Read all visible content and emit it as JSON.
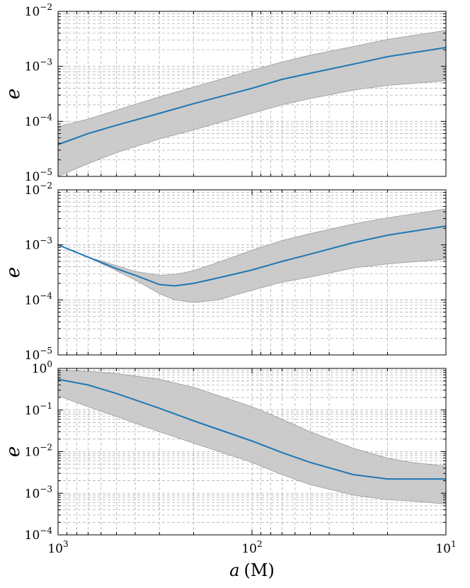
{
  "chart_data": [
    {
      "type": "line",
      "xscale": "log",
      "yscale": "log",
      "x_reversed": true,
      "xlim": [
        1000,
        10
      ],
      "ylim": [
        1e-05,
        0.01
      ],
      "grid": true,
      "ylabel": "e",
      "y_ticks": [
        1e-05,
        0.0001,
        0.001,
        0.01
      ],
      "y_tick_labels": [
        {
          "base": "10",
          "exp": "−5"
        },
        {
          "base": "10",
          "exp": "−4"
        },
        {
          "base": "10",
          "exp": "−3"
        },
        {
          "base": "10",
          "exp": "−2"
        }
      ],
      "x_tick_labels_shown": false,
      "line_color": "#1f77b4",
      "band_color": "#c8c8c8",
      "series": [
        {
          "x": [
            1000,
            700,
            500,
            300,
            200,
            100,
            70,
            50,
            30,
            20,
            10
          ],
          "median": [
            3.8e-05,
            6e-05,
            8.5e-05,
            0.00014,
            0.00021,
            0.0004,
            0.00058,
            0.00075,
            0.0011,
            0.0015,
            0.0022
          ],
          "upper": [
            8e-05,
            0.00011,
            0.00016,
            0.00028,
            0.00042,
            0.00085,
            0.0012,
            0.0016,
            0.0023,
            0.0031,
            0.0045
          ],
          "lower": [
            1e-05,
            1.7e-05,
            2.7e-05,
            4.8e-05,
            7e-05,
            0.00014,
            0.0002,
            0.00026,
            0.00037,
            0.00045,
            0.00055
          ]
        }
      ]
    },
    {
      "type": "line",
      "xscale": "log",
      "yscale": "log",
      "x_reversed": true,
      "xlim": [
        1000,
        10
      ],
      "ylim": [
        1e-05,
        0.01
      ],
      "grid": true,
      "ylabel": "e",
      "y_ticks": [
        1e-05,
        0.0001,
        0.001,
        0.01
      ],
      "y_tick_labels": [
        {
          "base": "10",
          "exp": "−5"
        },
        {
          "base": "10",
          "exp": "−4"
        },
        {
          "base": "10",
          "exp": "−3"
        },
        {
          "base": "10",
          "exp": "−2"
        }
      ],
      "x_tick_labels_shown": false,
      "line_color": "#1f77b4",
      "band_color": "#c8c8c8",
      "series": [
        {
          "x": [
            1000,
            700,
            500,
            400,
            300,
            250,
            200,
            150,
            100,
            70,
            50,
            30,
            20,
            10
          ],
          "median": [
            0.001,
            0.0006,
            0.00037,
            0.00028,
            0.00019,
            0.00018,
            0.0002,
            0.00025,
            0.00035,
            0.0005,
            0.00068,
            0.0011,
            0.0015,
            0.0022
          ],
          "upper": [
            0.001,
            0.0006,
            0.00042,
            0.00033,
            0.00028,
            0.00029,
            0.00034,
            0.00048,
            0.0008,
            0.0012,
            0.0016,
            0.0024,
            0.0031,
            0.0045
          ],
          "lower": [
            0.001,
            0.0006,
            0.00034,
            0.00023,
            0.00013,
            0.0001,
            9e-05,
            0.0001,
            0.00015,
            0.00021,
            0.00026,
            0.00038,
            0.00045,
            0.00055
          ]
        }
      ]
    },
    {
      "type": "line",
      "xscale": "log",
      "yscale": "log",
      "x_reversed": true,
      "xlim": [
        1000,
        10
      ],
      "ylim": [
        0.0001,
        1
      ],
      "grid": true,
      "ylabel": "e",
      "xlabel": {
        "var": "a",
        "unit": "(M)"
      },
      "y_ticks": [
        0.0001,
        0.001,
        0.01,
        0.1,
        1
      ],
      "y_tick_labels": [
        {
          "base": "10",
          "exp": "−4"
        },
        {
          "base": "10",
          "exp": "−3"
        },
        {
          "base": "10",
          "exp": "−2"
        },
        {
          "base": "10",
          "exp": "−1"
        },
        {
          "base": "10",
          "exp": "0"
        }
      ],
      "x_ticks": [
        1000,
        100,
        10
      ],
      "x_tick_labels": [
        {
          "base": "10",
          "exp": "3"
        },
        {
          "base": "10",
          "exp": "2"
        },
        {
          "base": "10",
          "exp": "1"
        }
      ],
      "line_color": "#1f77b4",
      "band_color": "#c8c8c8",
      "series": [
        {
          "x": [
            1000,
            700,
            500,
            300,
            200,
            100,
            70,
            50,
            30,
            20,
            15,
            10
          ],
          "median": [
            0.55,
            0.4,
            0.25,
            0.11,
            0.055,
            0.018,
            0.0095,
            0.0055,
            0.0028,
            0.0022,
            0.0022,
            0.0022
          ],
          "upper": [
            0.92,
            0.85,
            0.75,
            0.55,
            0.35,
            0.12,
            0.06,
            0.03,
            0.012,
            0.007,
            0.0055,
            0.0045
          ],
          "lower": [
            0.22,
            0.12,
            0.07,
            0.03,
            0.016,
            0.0055,
            0.0028,
            0.0016,
            0.0009,
            0.0007,
            0.00065,
            0.00055
          ]
        }
      ]
    }
  ]
}
